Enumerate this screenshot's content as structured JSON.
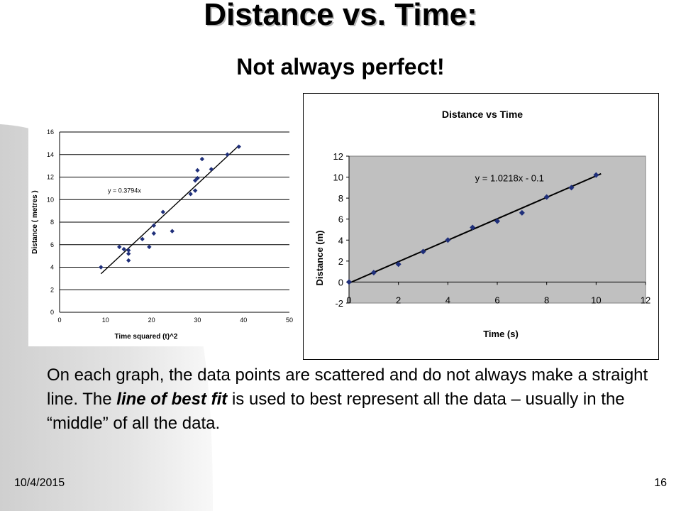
{
  "slide": {
    "title": "Distance vs. Time:",
    "subtitle": "Not always perfect!",
    "body": {
      "before": "On each graph, the data points are scattered and do not always make a straight line. The ",
      "emphasis": "line of best fit",
      "after": " is used to best represent all the data – usually in the “middle” of all the data."
    },
    "date": "10/4/2015",
    "page_number": "16"
  },
  "colors": {
    "marker": "#1f2f7a",
    "line": "#000000",
    "plot_area_right": "#c0c0c0"
  },
  "chart_data": [
    {
      "type": "scatter",
      "title": "",
      "xlabel": "Time squared (t)^2",
      "ylabel": "Distance ( metres )",
      "xlim": [
        0,
        50
      ],
      "ylim": [
        0,
        16
      ],
      "xticks": [
        0,
        10,
        20,
        30,
        40,
        50
      ],
      "yticks": [
        0,
        2,
        4,
        6,
        8,
        10,
        12,
        14,
        16
      ],
      "grid": "horizontal",
      "trendline": {
        "slope": 0.3794,
        "intercept": 0,
        "x_range": [
          9,
          39
        ],
        "label": "y = 0.3794x"
      },
      "points": [
        [
          9,
          4.0
        ],
        [
          13,
          5.8
        ],
        [
          14,
          5.6
        ],
        [
          15,
          5.5
        ],
        [
          15,
          4.6
        ],
        [
          15,
          5.2
        ],
        [
          18,
          6.5
        ],
        [
          19.5,
          5.8
        ],
        [
          20.5,
          7.0
        ],
        [
          20.5,
          7.7
        ],
        [
          22.5,
          8.9
        ],
        [
          24.5,
          7.2
        ],
        [
          28.5,
          10.5
        ],
        [
          29.5,
          11.7
        ],
        [
          29.5,
          10.8
        ],
        [
          30,
          11.9
        ],
        [
          30,
          12.6
        ],
        [
          31,
          13.6
        ],
        [
          33,
          12.7
        ],
        [
          36.5,
          14.0
        ],
        [
          39,
          14.7
        ]
      ]
    },
    {
      "type": "scatter",
      "title": "Distance vs Time",
      "xlabel": "Time (s)",
      "ylabel": "Distance (m)",
      "xlim": [
        0,
        12
      ],
      "ylim": [
        -2,
        12
      ],
      "xticks": [
        0,
        2,
        4,
        6,
        8,
        10,
        12
      ],
      "yticks": [
        -2,
        0,
        2,
        4,
        6,
        8,
        10,
        12
      ],
      "grid": "none",
      "trendline": {
        "slope": 1.0218,
        "intercept": -0.1,
        "x_range": [
          0,
          10.2
        ],
        "label": "y = 1.0218x - 0.1"
      },
      "points": [
        [
          0,
          0
        ],
        [
          1,
          0.9
        ],
        [
          2,
          1.7
        ],
        [
          3,
          2.9
        ],
        [
          4,
          4.0
        ],
        [
          5,
          5.2
        ],
        [
          6,
          5.8
        ],
        [
          7,
          6.6
        ],
        [
          8,
          8.1
        ],
        [
          9,
          9.0
        ],
        [
          10,
          10.2
        ]
      ]
    }
  ]
}
